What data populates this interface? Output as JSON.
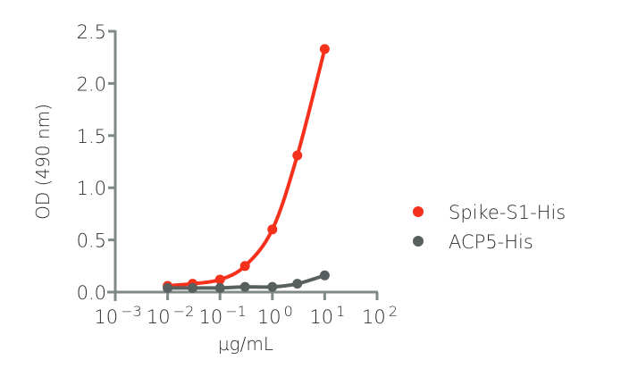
{
  "chart_data": {
    "type": "line",
    "title": "",
    "xlabel": "µg/mL",
    "ylabel": "OD (490 nm)",
    "xscale": "log",
    "xlim": [
      0.001,
      100
    ],
    "ylim": [
      0,
      2.5
    ],
    "grid": false,
    "legend_position": "right",
    "x": [
      0.01,
      0.03,
      0.1,
      0.3,
      1,
      3,
      10
    ],
    "x_ticks": [
      {
        "base": "10",
        "exp": "-3",
        "value": 0.001
      },
      {
        "base": "10",
        "exp": "-2",
        "value": 0.01
      },
      {
        "base": "10",
        "exp": "-1",
        "value": 0.1
      },
      {
        "base": "10",
        "exp": "0",
        "value": 1
      },
      {
        "base": "10",
        "exp": "1",
        "value": 10
      },
      {
        "base": "10",
        "exp": "2",
        "value": 100
      }
    ],
    "y_ticks": [
      "0.0",
      "0.5",
      "1.0",
      "1.5",
      "2.0",
      "2.5"
    ],
    "series": [
      {
        "name": "Spike-S1-His",
        "color": "#F5311C",
        "values": [
          0.06,
          0.08,
          0.12,
          0.25,
          0.6,
          1.31,
          2.33
        ]
      },
      {
        "name": "ACP5-His",
        "color": "#58605F",
        "values": [
          0.04,
          0.04,
          0.04,
          0.05,
          0.05,
          0.08,
          0.16
        ]
      }
    ]
  },
  "colors": {
    "axis": "#7F8A87",
    "text": "#2B2B2B"
  }
}
